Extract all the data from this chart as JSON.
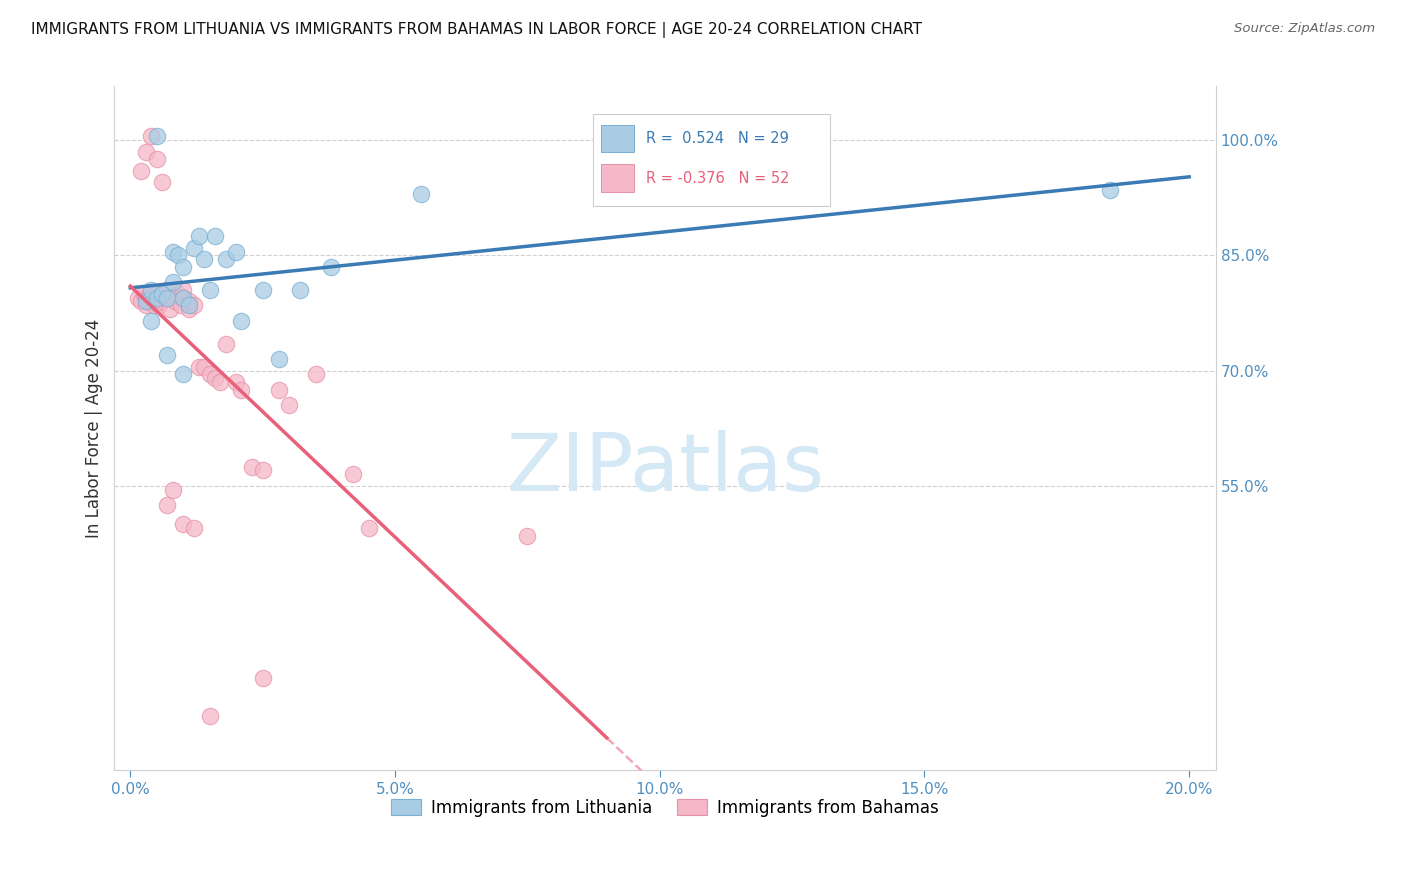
{
  "title": "IMMIGRANTS FROM LITHUANIA VS IMMIGRANTS FROM BAHAMAS IN LABOR FORCE | AGE 20-24 CORRELATION CHART",
  "source": "Source: ZipAtlas.com",
  "ylabel_label": "In Labor Force | Age 20-24",
  "xlim": [
    -0.3,
    20.5
  ],
  "ylim": [
    18.0,
    107.0
  ],
  "xticks": [
    0.0,
    5.0,
    10.0,
    15.0,
    20.0
  ],
  "yticks_right": [
    55.0,
    70.0,
    85.0,
    100.0
  ],
  "blue_scatter_color": "#a8cce4",
  "blue_edge_color": "#7ab0d4",
  "pink_scatter_color": "#f4b8c8",
  "pink_edge_color": "#e890a8",
  "blue_line_color": "#3a7ab5",
  "pink_line_color": "#e8607a",
  "grid_color": "#d0d0d0",
  "tick_color": "#5090c0",
  "legend_R_blue": "0.524",
  "legend_N_blue": "29",
  "legend_R_pink": "-0.376",
  "legend_N_pink": "52",
  "watermark": "ZIPatlas",
  "watermark_color": "#d5e8f5",
  "blue_scatter_x": [
    0.3,
    0.4,
    0.5,
    0.5,
    0.6,
    0.7,
    0.8,
    0.8,
    0.9,
    1.0,
    1.0,
    1.1,
    1.2,
    1.3,
    1.4,
    1.5,
    1.6,
    1.8,
    2.0,
    2.1,
    2.5,
    2.8,
    3.2,
    3.8,
    0.4,
    0.7,
    1.0,
    5.5,
    18.5
  ],
  "blue_scatter_y": [
    79.0,
    80.5,
    79.5,
    100.5,
    80.0,
    79.5,
    81.5,
    85.5,
    85.0,
    79.5,
    83.5,
    78.5,
    86.0,
    87.5,
    84.5,
    80.5,
    87.5,
    84.5,
    85.5,
    76.5,
    80.5,
    71.5,
    80.5,
    83.5,
    76.5,
    72.0,
    69.5,
    93.0,
    93.5
  ],
  "pink_scatter_x": [
    0.15,
    0.2,
    0.25,
    0.3,
    0.3,
    0.35,
    0.4,
    0.4,
    0.45,
    0.5,
    0.5,
    0.55,
    0.6,
    0.65,
    0.7,
    0.75,
    0.8,
    0.85,
    0.9,
    0.95,
    1.0,
    1.0,
    1.1,
    1.1,
    1.2,
    1.3,
    1.4,
    1.5,
    1.6,
    1.7,
    1.8,
    2.0,
    2.1,
    2.3,
    2.5,
    2.8,
    3.0,
    3.5,
    4.2,
    4.5,
    0.2,
    0.3,
    0.4,
    0.5,
    0.6,
    0.7,
    0.8,
    1.0,
    1.2,
    1.5,
    2.5,
    7.5
  ],
  "pink_scatter_y": [
    79.5,
    79.0,
    80.0,
    79.5,
    78.5,
    79.0,
    80.0,
    79.5,
    78.5,
    79.5,
    80.0,
    78.5,
    79.0,
    79.5,
    80.5,
    78.0,
    79.5,
    79.0,
    80.0,
    78.5,
    80.5,
    79.5,
    78.0,
    79.0,
    78.5,
    70.5,
    70.5,
    69.5,
    69.0,
    68.5,
    73.5,
    68.5,
    67.5,
    57.5,
    57.0,
    67.5,
    65.5,
    69.5,
    56.5,
    49.5,
    96.0,
    98.5,
    100.5,
    97.5,
    94.5,
    52.5,
    54.5,
    50.0,
    49.5,
    25.0,
    30.0,
    48.5
  ]
}
